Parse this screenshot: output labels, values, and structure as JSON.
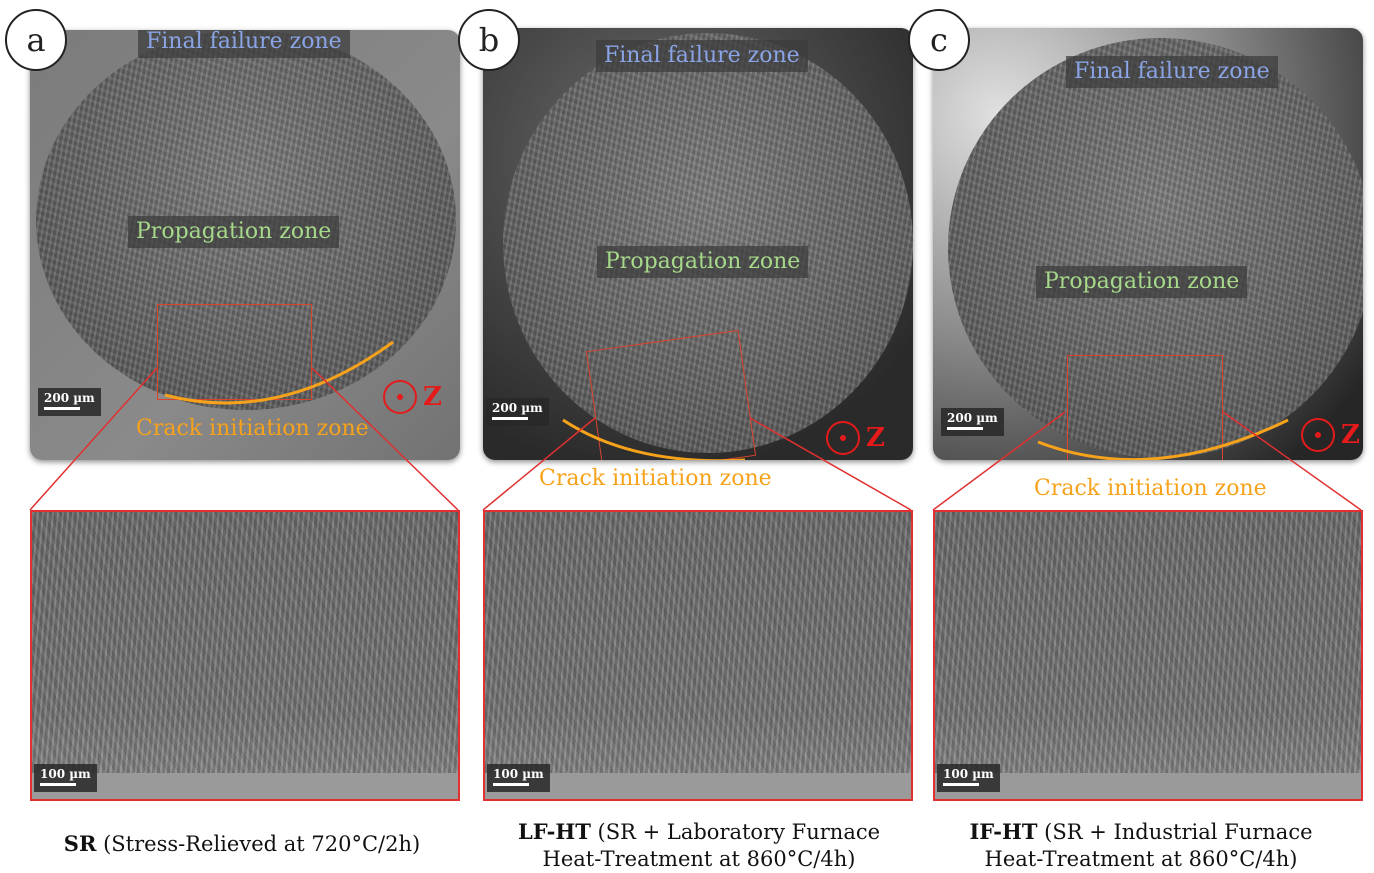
{
  "panels": [
    {
      "letter": "a",
      "final_label": "Final failure zone",
      "prop_label": "Propagation zone",
      "crack_label": "Crack initiation zone",
      "scale_top": "200 µm",
      "scale_bottom": "100 µm",
      "z_label": "Z",
      "caption_bold": "SR",
      "caption_line1": " (Stress-Relieved at 720°C/2h)",
      "caption_line2": ""
    },
    {
      "letter": "b",
      "final_label": "Final failure zone",
      "prop_label": "Propagation zone",
      "crack_label": "Crack initiation zone",
      "scale_top": "200 µm",
      "scale_bottom": "100 µm",
      "z_label": "Z",
      "caption_bold": "LF-HT",
      "caption_line1": " (SR + Laboratory Furnace",
      "caption_line2": "Heat-Treatment at 860°C/4h)"
    },
    {
      "letter": "c",
      "final_label": "Final failure zone",
      "prop_label": "Propagation zone",
      "crack_label": "Crack initiation zone",
      "scale_top": "200 µm",
      "scale_bottom": "100 µm",
      "z_label": "Z",
      "caption_bold": "IF-HT",
      "caption_line1": " (SR + Industrial Furnace",
      "caption_line2": "Heat-Treatment at 860°C/4h)"
    }
  ],
  "colors": {
    "final_label": "#8aa4e6",
    "prop_label": "#a6d98a",
    "crack_label": "#f7a21b",
    "zoom_box": "#e03030",
    "z_indicator": "#e51a1a"
  }
}
